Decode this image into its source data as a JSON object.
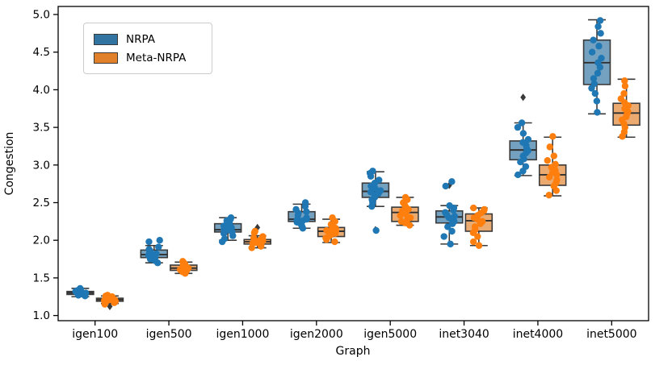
{
  "chart_data": {
    "type": "boxplot",
    "title": "",
    "xlabel": "Graph",
    "ylabel": "Congestion",
    "grid": false,
    "legend_position": "upper-left",
    "categories": [
      "igen100",
      "igen500",
      "igen1000",
      "igen2000",
      "igen5000",
      "inet3040",
      "inet4000",
      "inet5000"
    ],
    "ylim": [
      0.93,
      5.11
    ],
    "yticks": [
      1.0,
      1.5,
      2.0,
      2.5,
      3.0,
      3.5,
      4.0,
      4.5,
      5.0
    ],
    "ytick_labels": [
      "1.0",
      "1.5",
      "2.0",
      "2.5",
      "3.0",
      "3.5",
      "4.0",
      "4.5",
      "5.0"
    ],
    "colors": {
      "axis": "#000000",
      "box_edge": "#3a3a3a",
      "median": "#303030",
      "flier": "#3a3a3a"
    },
    "series": [
      {
        "name": "NRPA",
        "box_color": "#3274a1",
        "point_color": "#1f77b4",
        "boxes": [
          {
            "category": "igen100",
            "whislo": 1.25,
            "q1": 1.28,
            "med": 1.3,
            "q3": 1.32,
            "whishi": 1.36,
            "fliers": [],
            "points": [
              1.26,
              1.27,
              1.28,
              1.29,
              1.29,
              1.3,
              1.3,
              1.31,
              1.31,
              1.32,
              1.32,
              1.33,
              1.34,
              1.35,
              1.36
            ]
          },
          {
            "category": "igen500",
            "whislo": 1.7,
            "q1": 1.77,
            "med": 1.81,
            "q3": 1.87,
            "whishi": 1.93,
            "fliers": [],
            "points": [
              1.7,
              1.73,
              1.75,
              1.76,
              1.77,
              1.78,
              1.79,
              1.8,
              1.81,
              1.82,
              1.84,
              1.86,
              1.88,
              1.91,
              1.98,
              2.0
            ]
          },
          {
            "category": "igen1000",
            "whislo": 2.0,
            "q1": 2.11,
            "med": 2.14,
            "q3": 2.22,
            "whishi": 2.3,
            "fliers": [],
            "points": [
              1.98,
              2.02,
              2.06,
              2.09,
              2.11,
              2.12,
              2.13,
              2.14,
              2.15,
              2.17,
              2.19,
              2.21,
              2.23,
              2.26,
              2.28,
              2.3
            ]
          },
          {
            "category": "igen2000",
            "whislo": 2.16,
            "q1": 2.25,
            "med": 2.28,
            "q3": 2.38,
            "whishi": 2.48,
            "fliers": [],
            "points": [
              2.16,
              2.19,
              2.22,
              2.24,
              2.25,
              2.26,
              2.27,
              2.28,
              2.3,
              2.33,
              2.36,
              2.38,
              2.41,
              2.45,
              2.5
            ]
          },
          {
            "category": "igen5000",
            "whislo": 2.45,
            "q1": 2.57,
            "med": 2.65,
            "q3": 2.76,
            "whishi": 2.91,
            "fliers": [
              2.14
            ],
            "points": [
              2.13,
              2.45,
              2.5,
              2.54,
              2.57,
              2.6,
              2.62,
              2.64,
              2.66,
              2.69,
              2.72,
              2.76,
              2.8,
              2.85,
              2.89,
              2.92
            ]
          },
          {
            "category": "inet3040",
            "whislo": 1.95,
            "q1": 2.23,
            "med": 2.31,
            "q3": 2.39,
            "whishi": 2.46,
            "fliers": [
              2.73
            ],
            "points": [
              1.95,
              2.05,
              2.12,
              2.18,
              2.22,
              2.25,
              2.28,
              2.3,
              2.32,
              2.34,
              2.37,
              2.4,
              2.43,
              2.46,
              2.72,
              2.78
            ]
          },
          {
            "category": "inet4000",
            "whislo": 2.86,
            "q1": 3.07,
            "med": 3.2,
            "q3": 3.32,
            "whishi": 3.56,
            "fliers": [
              3.9
            ],
            "points": [
              2.87,
              2.92,
              2.98,
              3.04,
              3.08,
              3.12,
              3.16,
              3.19,
              3.22,
              3.26,
              3.3,
              3.34,
              3.42,
              3.5,
              3.56
            ]
          },
          {
            "category": "inet5000",
            "whislo": 3.68,
            "q1": 4.07,
            "med": 4.36,
            "q3": 4.66,
            "whishi": 4.93,
            "fliers": [],
            "points": [
              3.7,
              3.85,
              3.95,
              4.02,
              4.08,
              4.15,
              4.22,
              4.3,
              4.36,
              4.42,
              4.5,
              4.58,
              4.66,
              4.75,
              4.84,
              4.92
            ]
          }
        ]
      },
      {
        "name": "Meta-NRPA",
        "box_color": "#e1812c",
        "point_color": "#ff7f0e",
        "boxes": [
          {
            "category": "igen100",
            "whislo": 1.16,
            "q1": 1.19,
            "med": 1.21,
            "q3": 1.23,
            "whishi": 1.26,
            "fliers": [
              1.12
            ],
            "points": [
              1.15,
              1.17,
              1.18,
              1.19,
              1.2,
              1.2,
              1.21,
              1.21,
              1.22,
              1.22,
              1.23,
              1.24,
              1.25,
              1.26,
              1.27
            ]
          },
          {
            "category": "igen500",
            "whislo": 1.56,
            "q1": 1.6,
            "med": 1.63,
            "q3": 1.67,
            "whishi": 1.71,
            "fliers": [],
            "points": [
              1.56,
              1.58,
              1.59,
              1.6,
              1.61,
              1.62,
              1.63,
              1.63,
              1.64,
              1.65,
              1.66,
              1.67,
              1.68,
              1.7,
              1.72
            ]
          },
          {
            "category": "igen1000",
            "whislo": 1.9,
            "q1": 1.95,
            "med": 1.98,
            "q3": 2.01,
            "whishi": 2.06,
            "fliers": [
              2.17
            ],
            "points": [
              1.9,
              1.92,
              1.94,
              1.95,
              1.96,
              1.97,
              1.98,
              1.98,
              1.99,
              2.0,
              2.01,
              2.03,
              2.05,
              2.1,
              2.12
            ]
          },
          {
            "category": "igen2000",
            "whislo": 1.97,
            "q1": 2.05,
            "med": 2.12,
            "q3": 2.17,
            "whishi": 2.28,
            "fliers": [],
            "points": [
              1.98,
              2.01,
              2.03,
              2.05,
              2.07,
              2.09,
              2.11,
              2.12,
              2.13,
              2.15,
              2.16,
              2.18,
              2.21,
              2.25,
              2.3
            ]
          },
          {
            "category": "igen5000",
            "whislo": 2.2,
            "q1": 2.25,
            "med": 2.37,
            "q3": 2.44,
            "whishi": 2.57,
            "fliers": [],
            "points": [
              2.2,
              2.23,
              2.25,
              2.28,
              2.3,
              2.33,
              2.35,
              2.37,
              2.39,
              2.41,
              2.43,
              2.46,
              2.5,
              2.54,
              2.57
            ]
          },
          {
            "category": "inet3040",
            "whislo": 1.93,
            "q1": 2.12,
            "med": 2.26,
            "q3": 2.35,
            "whishi": 2.43,
            "fliers": [],
            "points": [
              1.93,
              1.98,
              2.05,
              2.1,
              2.14,
              2.18,
              2.22,
              2.25,
              2.28,
              2.3,
              2.33,
              2.36,
              2.39,
              2.41,
              2.43
            ]
          },
          {
            "category": "inet4000",
            "whislo": 2.59,
            "q1": 2.73,
            "med": 2.87,
            "q3": 3.0,
            "whishi": 3.37,
            "fliers": [],
            "points": [
              2.6,
              2.66,
              2.72,
              2.76,
              2.8,
              2.84,
              2.87,
              2.9,
              2.93,
              2.97,
              3.01,
              3.06,
              3.12,
              3.24,
              3.38
            ]
          },
          {
            "category": "inet5000",
            "whislo": 3.37,
            "q1": 3.53,
            "med": 3.69,
            "q3": 3.82,
            "whishi": 4.14,
            "fliers": [],
            "points": [
              3.38,
              3.44,
              3.5,
              3.55,
              3.6,
              3.64,
              3.68,
              3.71,
              3.75,
              3.79,
              3.83,
              3.88,
              3.95,
              4.05,
              4.12
            ]
          }
        ]
      }
    ]
  }
}
